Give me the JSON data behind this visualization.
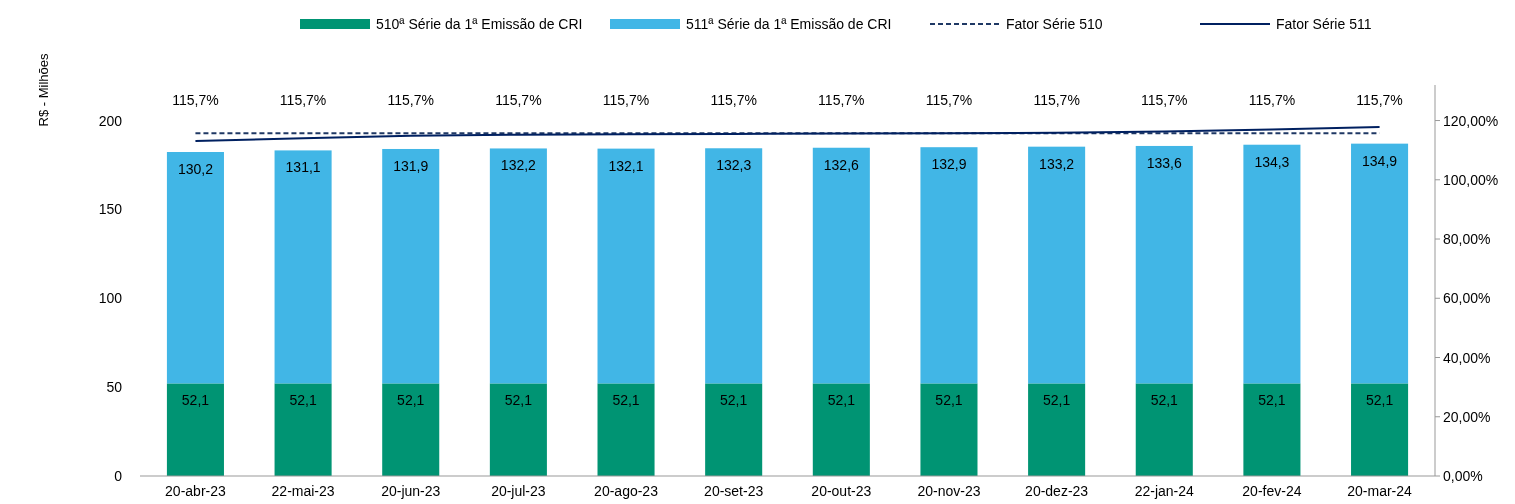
{
  "chart_data": {
    "type": "bar",
    "stacked": true,
    "ylabel": "R$ - Milhões",
    "legend": "top",
    "grid": false,
    "categories": [
      "20-abr-23",
      "22-mai-23",
      "20-jun-23",
      "20-jul-23",
      "20-ago-23",
      "20-set-23",
      "20-out-23",
      "20-nov-23",
      "20-dez-23",
      "22-jan-24",
      "20-fev-24",
      "20-mar-24"
    ],
    "ylim": [
      0,
      220
    ],
    "yticks": [
      0,
      50,
      100,
      150,
      200
    ],
    "y2lim": [
      0,
      132
    ],
    "y2ticks": [
      {
        "value": 0,
        "label": "0,00%"
      },
      {
        "value": 20,
        "label": "20,00%"
      },
      {
        "value": 40,
        "label": "40,00%"
      },
      {
        "value": 60,
        "label": "60,00%"
      },
      {
        "value": 80,
        "label": "80,00%"
      },
      {
        "value": 100,
        "label": "100,00%"
      },
      {
        "value": 120,
        "label": "120,00%"
      }
    ],
    "series": [
      {
        "name": "510ª Série da 1ª Emissão de CRI",
        "color": "#009473",
        "values": [
          52.1,
          52.1,
          52.1,
          52.1,
          52.1,
          52.1,
          52.1,
          52.1,
          52.1,
          52.1,
          52.1,
          52.1
        ],
        "value_labels": [
          "52,1",
          "52,1",
          "52,1",
          "52,1",
          "52,1",
          "52,1",
          "52,1",
          "52,1",
          "52,1",
          "52,1",
          "52,1",
          "52,1"
        ]
      },
      {
        "name": "511ª Série da 1ª Emissão de CRI",
        "color": "#41b6e6",
        "values": [
          130.2,
          131.1,
          131.9,
          132.2,
          132.1,
          132.3,
          132.6,
          132.9,
          133.2,
          133.6,
          134.3,
          134.9
        ],
        "value_labels": [
          "130,2",
          "131,1",
          "131,9",
          "132,2",
          "132,1",
          "132,3",
          "132,6",
          "132,9",
          "133,2",
          "133,6",
          "134,3",
          "134,9"
        ]
      },
      {
        "name": "Fator Série 510",
        "type": "line",
        "axis": "y2",
        "line_style": "dashed",
        "color": "#1f3864",
        "values": [
          115.7,
          115.7,
          115.7,
          115.7,
          115.7,
          115.7,
          115.7,
          115.7,
          115.7,
          115.7,
          115.7,
          115.7
        ],
        "value_labels": [
          "115,7%",
          "115,7%",
          "115,7%",
          "115,7%",
          "115,7%",
          "115,7%",
          "115,7%",
          "115,7%",
          "115,7%",
          "115,7%",
          "115,7%",
          "115,7%"
        ]
      },
      {
        "name": "Fator Série 511",
        "type": "line",
        "axis": "y2",
        "line_style": "solid",
        "color": "#002060",
        "values": [
          113.1,
          114.0,
          114.9,
          115.2,
          115.4,
          115.5,
          115.6,
          115.7,
          115.9,
          116.3,
          117.0,
          117.8
        ]
      }
    ]
  }
}
